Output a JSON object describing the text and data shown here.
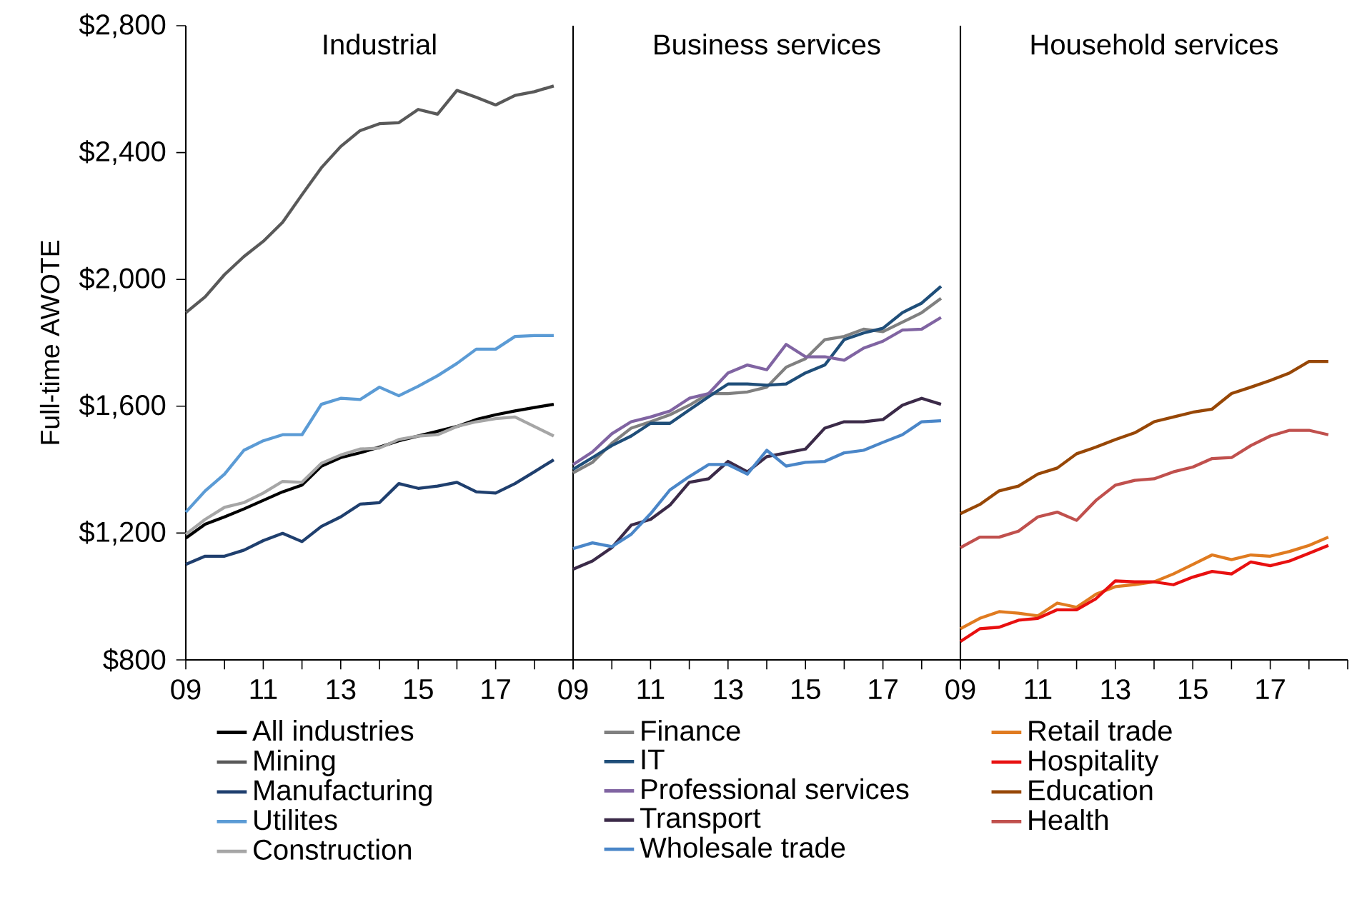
{
  "chart_data": [
    {
      "type": "line",
      "title": "Industrial",
      "ylabel": "Full-time AWOTE",
      "legend": "bottom",
      "x": [
        2009,
        2009.5,
        2010,
        2010.5,
        2011,
        2011.5,
        2012,
        2012.5,
        2013,
        2013.5,
        2014,
        2014.5,
        2015,
        2015.5,
        2016,
        2016.5,
        2017,
        2017.5,
        2018,
        2018.5
      ],
      "xlim": [
        2009,
        2019
      ],
      "xticks": [
        {
          "value": 2009,
          "label": "09"
        },
        {
          "value": 2010,
          "label": null
        },
        {
          "value": 2011,
          "label": "11"
        },
        {
          "value": 2012,
          "label": null
        },
        {
          "value": 2013,
          "label": "13"
        },
        {
          "value": 2014,
          "label": null
        },
        {
          "value": 2015,
          "label": "15"
        },
        {
          "value": 2016,
          "label": null
        },
        {
          "value": 2017,
          "label": "17"
        },
        {
          "value": 2018,
          "label": null
        },
        {
          "value": 2019,
          "label": null
        }
      ],
      "ylim": [
        800,
        2800
      ],
      "yticks": [
        {
          "value": 800,
          "label": "$800"
        },
        {
          "value": 1200,
          "label": "$1,200"
        },
        {
          "value": 1600,
          "label": "$1,600"
        },
        {
          "value": 2000,
          "label": "$2,000"
        },
        {
          "value": 2400,
          "label": "$2,400"
        },
        {
          "value": 2800,
          "label": "$2,800"
        }
      ],
      "series": [
        {
          "name": "All industries",
          "color": "#000000",
          "values": [
            1184,
            1228,
            1251,
            1276,
            1303,
            1330,
            1351,
            1411,
            1438,
            1453,
            1471,
            1491,
            1506,
            1521,
            1536,
            1558,
            1573,
            1585,
            1596,
            1606
          ]
        },
        {
          "name": "Mining",
          "color": "#595959",
          "values": [
            1895,
            1945,
            2015,
            2072,
            2120,
            2180,
            2267,
            2352,
            2419,
            2469,
            2491,
            2494,
            2536,
            2521,
            2596,
            2574,
            2550,
            2580,
            2592,
            2610
          ]
        },
        {
          "name": "Manufacturing",
          "color": "#1f3f6e",
          "values": [
            1101,
            1127,
            1127,
            1146,
            1176,
            1199,
            1173,
            1221,
            1251,
            1291,
            1296,
            1356,
            1341,
            1348,
            1360,
            1330,
            1326,
            1356,
            1393,
            1431
          ]
        },
        {
          "name": "Utilites",
          "color": "#5b9bd5",
          "values": [
            1266,
            1333,
            1386,
            1461,
            1491,
            1510,
            1510,
            1606,
            1625,
            1621,
            1660,
            1633,
            1663,
            1696,
            1735,
            1780,
            1780,
            1820,
            1823,
            1823
          ]
        },
        {
          "name": "Construction",
          "color": "#a6a6a6",
          "values": [
            1196,
            1243,
            1281,
            1296,
            1326,
            1363,
            1360,
            1420,
            1446,
            1465,
            1468,
            1495,
            1506,
            1510,
            1536,
            1551,
            1561,
            1566,
            1536,
            1506
          ]
        }
      ]
    },
    {
      "type": "line",
      "title": "Business services",
      "legend": "bottom",
      "tick_labels": "x",
      "x": [
        2009,
        2009.5,
        2010,
        2010.5,
        2011,
        2011.5,
        2012,
        2012.5,
        2013,
        2013.5,
        2014,
        2014.5,
        2015,
        2015.5,
        2016,
        2016.5,
        2017,
        2017.5,
        2018,
        2018.5
      ],
      "xlim": [
        2009,
        2019
      ],
      "xticks": [
        {
          "value": 2009,
          "label": "09"
        },
        {
          "value": 2010,
          "label": null
        },
        {
          "value": 2011,
          "label": "11"
        },
        {
          "value": 2012,
          "label": null
        },
        {
          "value": 2013,
          "label": "13"
        },
        {
          "value": 2014,
          "label": null
        },
        {
          "value": 2015,
          "label": "15"
        },
        {
          "value": 2016,
          "label": null
        },
        {
          "value": 2017,
          "label": "17"
        },
        {
          "value": 2018,
          "label": null
        },
        {
          "value": 2019,
          "label": null
        }
      ],
      "ylim": [
        800,
        2800
      ],
      "series": [
        {
          "name": "Finance",
          "color": "#808080",
          "values": [
            1390,
            1423,
            1483,
            1531,
            1551,
            1573,
            1603,
            1640,
            1640,
            1645,
            1660,
            1723,
            1750,
            1810,
            1820,
            1843,
            1835,
            1865,
            1895,
            1940
          ]
        },
        {
          "name": "IT",
          "color": "#1f4e79",
          "values": [
            1401,
            1438,
            1476,
            1506,
            1546,
            1546,
            1588,
            1630,
            1670,
            1670,
            1666,
            1670,
            1705,
            1730,
            1810,
            1831,
            1846,
            1895,
            1925,
            1978
          ]
        },
        {
          "name": "Professional services",
          "color": "#8064a2",
          "values": [
            1416,
            1456,
            1513,
            1551,
            1566,
            1585,
            1625,
            1640,
            1705,
            1730,
            1715,
            1795,
            1756,
            1756,
            1745,
            1783,
            1805,
            1840,
            1843,
            1880
          ]
        },
        {
          "name": "Transport",
          "color": "#3b2a48",
          "values": [
            1086,
            1112,
            1154,
            1225,
            1243,
            1288,
            1360,
            1371,
            1426,
            1393,
            1441,
            1453,
            1465,
            1531,
            1551,
            1551,
            1558,
            1603,
            1625,
            1606
          ]
        },
        {
          "name": "Wholesale trade",
          "color": "#4a86c8",
          "values": [
            1151,
            1169,
            1157,
            1196,
            1261,
            1336,
            1378,
            1416,
            1416,
            1386,
            1461,
            1411,
            1423,
            1426,
            1453,
            1461,
            1486,
            1510,
            1551,
            1554
          ]
        }
      ]
    },
    {
      "type": "line",
      "title": "Household services",
      "legend": "bottom",
      "tick_labels": "x",
      "x": [
        2009,
        2009.5,
        2010,
        2010.5,
        2011,
        2011.5,
        2012,
        2012.5,
        2013,
        2013.5,
        2014,
        2014.5,
        2015,
        2015.5,
        2016,
        2016.5,
        2017,
        2017.5,
        2018,
        2018.5
      ],
      "xlim": [
        2009,
        2019
      ],
      "xticks": [
        {
          "value": 2009,
          "label": "09"
        },
        {
          "value": 2010,
          "label": null
        },
        {
          "value": 2011,
          "label": "11"
        },
        {
          "value": 2012,
          "label": null
        },
        {
          "value": 2013,
          "label": "13"
        },
        {
          "value": 2014,
          "label": null
        },
        {
          "value": 2015,
          "label": "15"
        },
        {
          "value": 2016,
          "label": null
        },
        {
          "value": 2017,
          "label": "17"
        },
        {
          "value": 2018,
          "label": null
        },
        {
          "value": 2019,
          "label": null
        }
      ],
      "ylim": [
        800,
        2800
      ],
      "series": [
        {
          "name": "Retail trade",
          "color": "#e07b20",
          "values": [
            898,
            931,
            952,
            947,
            939,
            979,
            966,
            1007,
            1031,
            1037,
            1046,
            1071,
            1101,
            1131,
            1116,
            1131,
            1127,
            1142,
            1161,
            1187
          ]
        },
        {
          "name": "Hospitality",
          "color": "#e81010",
          "values": [
            858,
            898,
            903,
            925,
            931,
            958,
            958,
            993,
            1049,
            1046,
            1046,
            1037,
            1061,
            1079,
            1071,
            1109,
            1097,
            1112,
            1136,
            1161
          ]
        },
        {
          "name": "Education",
          "color": "#974706",
          "values": [
            1261,
            1290,
            1333,
            1348,
            1386,
            1405,
            1450,
            1471,
            1495,
            1516,
            1551,
            1566,
            1581,
            1591,
            1640,
            1660,
            1681,
            1705,
            1741,
            1741
          ]
        },
        {
          "name": "Health",
          "color": "#c0504d",
          "values": [
            1154,
            1187,
            1187,
            1206,
            1251,
            1266,
            1240,
            1303,
            1351,
            1366,
            1371,
            1393,
            1408,
            1435,
            1438,
            1476,
            1506,
            1524,
            1524,
            1510
          ]
        }
      ]
    }
  ]
}
